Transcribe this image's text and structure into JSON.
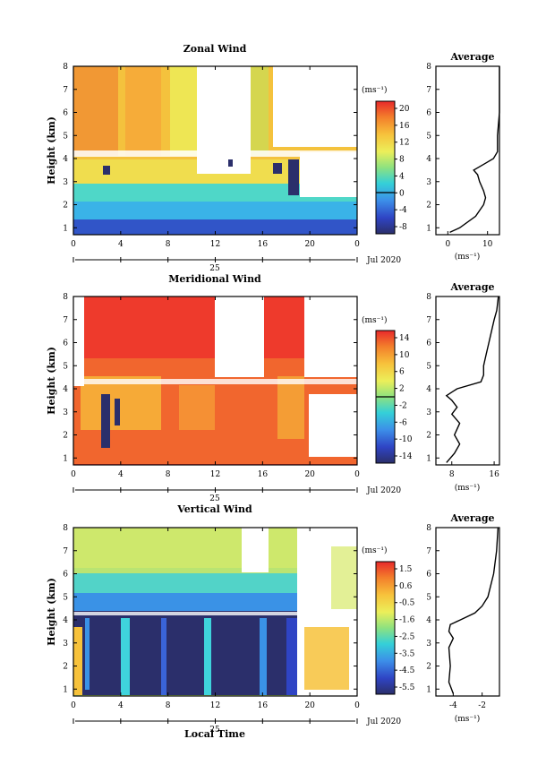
{
  "chart_data": [
    {
      "type": "heatmap",
      "title": "Zonal Wind",
      "ylabel": "Height (km)",
      "y_ticks": [
        "1",
        "2",
        "3",
        "4",
        "5",
        "6",
        "7",
        "8"
      ],
      "ylim": [
        0.7,
        8
      ],
      "x_ticks": [
        "0",
        "4",
        "8",
        "12",
        "16",
        "20",
        "0"
      ],
      "xlim": [
        0,
        24
      ],
      "date_day": "25",
      "date_label": "Jul 2020",
      "colorbar": {
        "unit": "(ms⁻¹)",
        "ticks": [
          "20",
          "16",
          "12",
          "8",
          "4",
          "0",
          "-4",
          "-8"
        ],
        "range": [
          -10,
          22
        ]
      },
      "profile": {
        "title": "Average",
        "xlabel": "(ms⁻¹)",
        "x_ticks": [
          "0",
          "10"
        ],
        "xlim": [
          -3,
          13
        ],
        "heights": [
          0.8,
          1.0,
          1.5,
          2.0,
          2.3,
          2.6,
          3.0,
          3.3,
          3.5,
          3.8,
          4.0,
          4.3,
          5.0,
          6.0,
          7.0,
          8.0
        ],
        "values": [
          0.5,
          3.0,
          7.0,
          9.0,
          9.5,
          9.0,
          8.0,
          7.5,
          6.5,
          9.5,
          11.5,
          12.5,
          12.5,
          13.0,
          13.0,
          13.0
        ]
      }
    },
    {
      "type": "heatmap",
      "title": "Meridional Wind",
      "ylabel": "Height (km)",
      "y_ticks": [
        "1",
        "2",
        "3",
        "4",
        "5",
        "6",
        "7",
        "8"
      ],
      "ylim": [
        0.7,
        8
      ],
      "x_ticks": [
        "0",
        "4",
        "8",
        "12",
        "16",
        "20",
        "0"
      ],
      "xlim": [
        0,
        24
      ],
      "date_day": "25",
      "date_label": "Jul 2020",
      "colorbar": {
        "unit": "(ms⁻¹)",
        "ticks": [
          "14",
          "10",
          "6",
          "2",
          "-2",
          "-6",
          "-10",
          "-14"
        ],
        "range": [
          -16,
          17
        ]
      },
      "profile": {
        "title": "Average",
        "xlabel": "(ms⁻¹)",
        "x_ticks": [
          "8",
          "16"
        ],
        "xlim": [
          5,
          17
        ],
        "heights": [
          0.8,
          1.2,
          1.6,
          2.0,
          2.5,
          2.9,
          3.2,
          3.5,
          3.7,
          4.0,
          4.3,
          4.6,
          5.0,
          5.5,
          6.0,
          7.0,
          7.4,
          8.0
        ],
        "values": [
          7.0,
          8.5,
          9.5,
          8.5,
          9.5,
          8.0,
          9.0,
          8.0,
          7.0,
          9.0,
          13.5,
          14.0,
          14.0,
          14.5,
          15.0,
          16.0,
          16.5,
          16.8
        ]
      }
    },
    {
      "type": "heatmap",
      "title": "Vertical Wind",
      "ylabel": "Height (km)",
      "xlabel": "Local Time",
      "y_ticks": [
        "1",
        "2",
        "3",
        "4",
        "5",
        "6",
        "7",
        "8"
      ],
      "ylim": [
        0.7,
        8
      ],
      "x_ticks": [
        "0",
        "4",
        "8",
        "12",
        "16",
        "20",
        "0"
      ],
      "xlim": [
        0,
        24
      ],
      "date_day": "25",
      "date_label": "Jul 2020",
      "colorbar": {
        "unit": "(ms⁻¹)",
        "ticks": [
          "1.5",
          "0.6",
          "-0.5",
          "-1.6",
          "-2.5",
          "-3.5",
          "-4.5",
          "-5.5"
        ],
        "range": [
          -6.2,
          2.2
        ]
      },
      "profile": {
        "title": "Average",
        "xlabel": "(ms⁻¹)",
        "x_ticks": [
          "-4",
          "-2"
        ],
        "xlim": [
          -5.2,
          -0.8
        ],
        "heights": [
          0.8,
          1.3,
          2.0,
          2.8,
          3.2,
          3.5,
          3.8,
          4.0,
          4.3,
          4.6,
          5.0,
          6.0,
          7.0,
          8.0
        ],
        "values": [
          -4.0,
          -4.3,
          -4.2,
          -4.3,
          -4.0,
          -4.3,
          -4.2,
          -3.5,
          -2.5,
          -2.0,
          -1.6,
          -1.2,
          -1.0,
          -0.9
        ]
      }
    }
  ]
}
